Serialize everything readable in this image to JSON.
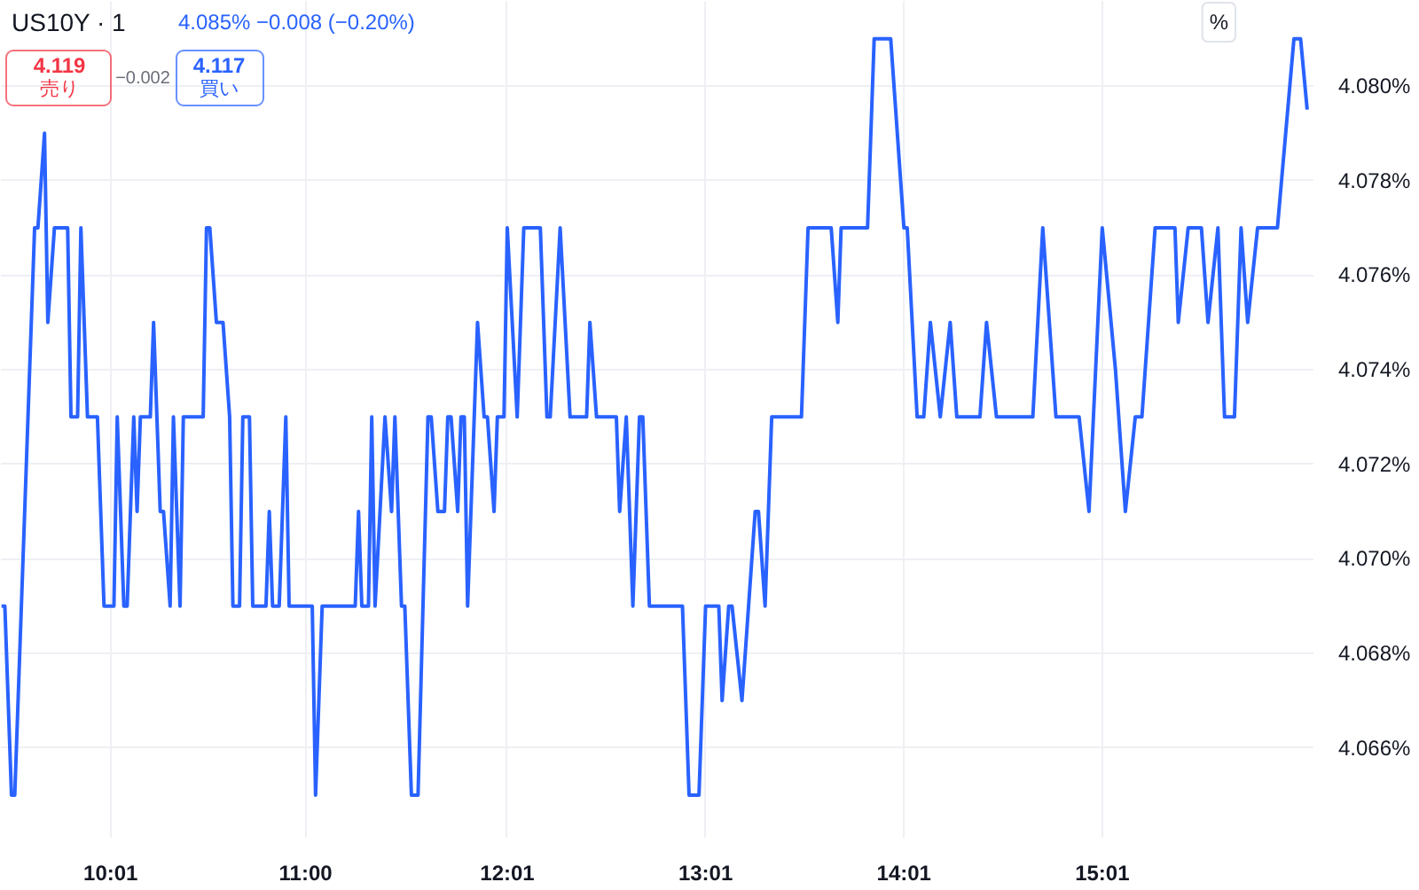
{
  "chart_data": {
    "type": "line",
    "title": "US10Y · 1",
    "ylabel": "%",
    "annotations": [
      "4.085%  −0.008 (−0.20%)",
      "4.119",
      "売り",
      "−0.002",
      "4.117",
      "買い"
    ],
    "x": [
      9.4667,
      9.4833,
      9.5167,
      9.5333,
      9.6,
      9.6333,
      9.65,
      9.6833,
      9.7,
      9.7333,
      9.8,
      9.8167,
      9.85,
      9.8667,
      9.9,
      9.95,
      9.9833,
      10.0333,
      10.05,
      10.0833,
      10.1,
      10.1333,
      10.15,
      10.1667,
      10.2167,
      10.2333,
      10.2667,
      10.2833,
      10.3167,
      10.3333,
      10.3667,
      10.3833,
      10.4833,
      10.5,
      10.5167,
      10.55,
      10.5833,
      10.6167,
      10.6333,
      10.6667,
      10.6833,
      10.7167,
      10.7333,
      10.8,
      10.8167,
      10.8333,
      10.8667,
      10.9,
      10.9167,
      11.0333,
      11.05,
      11.0833,
      11.25,
      11.2667,
      11.2833,
      11.3167,
      11.3333,
      11.35,
      11.4,
      11.4333,
      11.45,
      11.4833,
      11.5,
      11.5333,
      11.5667,
      11.6167,
      11.6333,
      11.6667,
      11.7,
      11.7167,
      11.7333,
      11.7667,
      11.7833,
      11.8,
      11.8167,
      11.8667,
      11.9,
      11.9167,
      11.95,
      11.9667,
      12.0,
      12.0167,
      12.0667,
      12.1,
      12.1833,
      12.2167,
      12.2333,
      12.2833,
      12.3333,
      12.4167,
      12.4333,
      12.4667,
      12.5667,
      12.5833,
      12.6167,
      12.65,
      12.6833,
      12.7,
      12.7333,
      12.9,
      12.9333,
      12.9833,
      13.0167,
      13.0833,
      13.1,
      13.1333,
      13.15,
      13.2,
      13.2667,
      13.2833,
      13.3167,
      13.35,
      13.5,
      13.5333,
      13.65,
      13.6833,
      13.7,
      13.8333,
      13.8667,
      13.95,
      14.0167,
      14.0333,
      14.0833,
      14.1167,
      14.15,
      14.2,
      14.25,
      14.2833,
      14.4,
      14.4333,
      14.4833,
      14.6667,
      14.7167,
      14.7833,
      14.9,
      14.95,
      15.0167,
      15.0833,
      15.1333,
      15.1833,
      15.2167,
      15.2833,
      15.3833,
      15.4,
      15.45,
      15.5167,
      15.55,
      15.6,
      15.6333,
      15.6833,
      15.7167,
      15.75,
      15.8,
      15.9,
      15.9833,
      16.0167,
      16.05
    ],
    "series": [
      {
        "color": "#2962ff",
        "values": [
          4.069,
          4.069,
          4.065,
          4.065,
          4.073,
          4.077,
          4.077,
          4.079,
          4.075,
          4.077,
          4.077,
          4.073,
          4.073,
          4.077,
          4.073,
          4.073,
          4.069,
          4.069,
          4.073,
          4.069,
          4.069,
          4.073,
          4.071,
          4.073,
          4.073,
          4.075,
          4.071,
          4.071,
          4.069,
          4.073,
          4.069,
          4.073,
          4.073,
          4.077,
          4.077,
          4.075,
          4.075,
          4.073,
          4.069,
          4.069,
          4.073,
          4.073,
          4.069,
          4.069,
          4.071,
          4.069,
          4.069,
          4.073,
          4.069,
          4.069,
          4.065,
          4.069,
          4.069,
          4.071,
          4.069,
          4.069,
          4.073,
          4.069,
          4.073,
          4.071,
          4.073,
          4.069,
          4.069,
          4.065,
          4.065,
          4.073,
          4.073,
          4.071,
          4.071,
          4.073,
          4.073,
          4.071,
          4.073,
          4.073,
          4.069,
          4.075,
          4.073,
          4.073,
          4.071,
          4.073,
          4.073,
          4.077,
          4.073,
          4.077,
          4.077,
          4.073,
          4.073,
          4.077,
          4.073,
          4.073,
          4.075,
          4.073,
          4.073,
          4.071,
          4.073,
          4.069,
          4.073,
          4.073,
          4.069,
          4.069,
          4.065,
          4.065,
          4.069,
          4.069,
          4.067,
          4.069,
          4.069,
          4.067,
          4.071,
          4.071,
          4.069,
          4.073,
          4.073,
          4.077,
          4.077,
          4.075,
          4.077,
          4.077,
          4.081,
          4.081,
          4.077,
          4.077,
          4.073,
          4.073,
          4.075,
          4.073,
          4.075,
          4.073,
          4.073,
          4.075,
          4.073,
          4.073,
          4.077,
          4.073,
          4.073,
          4.071,
          4.077,
          4.074,
          4.071,
          4.073,
          4.073,
          4.077,
          4.077,
          4.075,
          4.077,
          4.077,
          4.075,
          4.077,
          4.073,
          4.073,
          4.077,
          4.075,
          4.077,
          4.077,
          4.081,
          4.081,
          4.0795
        ]
      }
    ],
    "xlim": [
      9.4633,
      16.0817
    ],
    "ylim": [
      4.0641,
      4.0818
    ],
    "xticks": [
      {
        "value": 10.0167,
        "label": "10:01"
      },
      {
        "value": 11,
        "label": "11:00"
      },
      {
        "value": 12.0167,
        "label": "12:01"
      },
      {
        "value": 13.0167,
        "label": "13:01"
      },
      {
        "value": 14.0167,
        "label": "14:01"
      },
      {
        "value": 15.0167,
        "label": "15:01"
      }
    ],
    "yticks": [
      {
        "value": 4.066,
        "label": "4.066%"
      },
      {
        "value": 4.068,
        "label": "4.068%"
      },
      {
        "value": 4.07,
        "label": "4.070%"
      },
      {
        "value": 4.072,
        "label": "4.072%"
      },
      {
        "value": 4.074,
        "label": "4.074%"
      },
      {
        "value": 4.076,
        "label": "4.076%"
      },
      {
        "value": 4.078,
        "label": "4.078%"
      },
      {
        "value": 4.08,
        "label": "4.080%"
      }
    ],
    "grid": true,
    "line_style": "solid"
  }
}
